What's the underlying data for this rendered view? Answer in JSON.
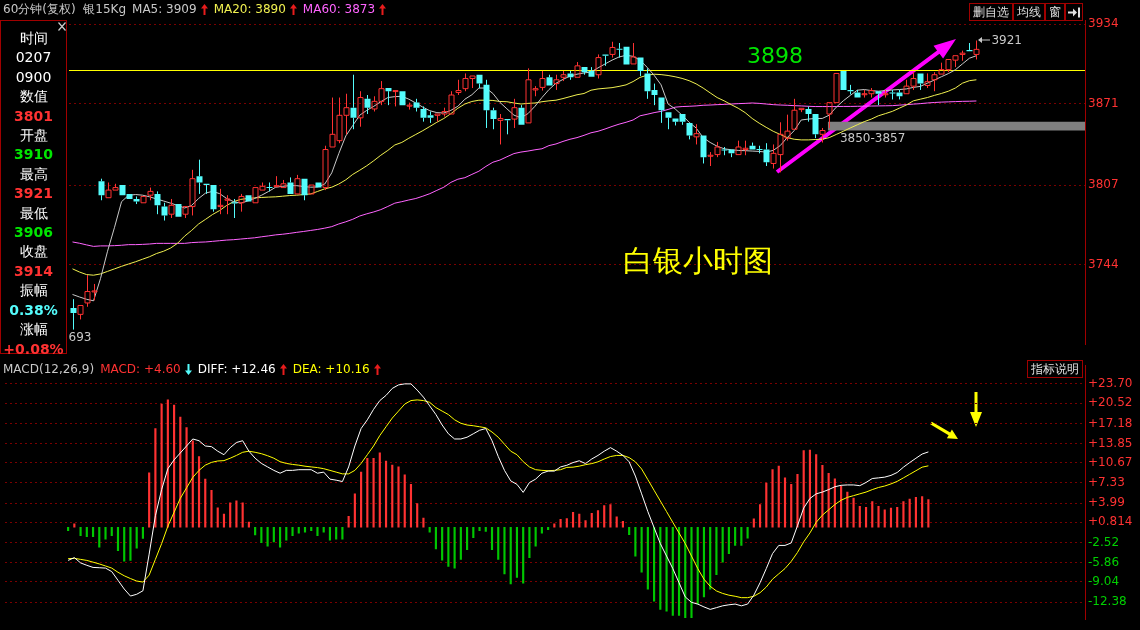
{
  "chart_data": [
    {
      "type": "other",
      "annotations": [
        "时间",
        "0207",
        "0900",
        "数值",
        "3801",
        "开盘",
        "3910",
        "最高",
        "3921",
        "最低",
        "3906",
        "收盘",
        "3914",
        "振幅",
        "0.38%",
        "涨幅",
        "+0.08%"
      ],
      "colors": [
        "#ffffff",
        "#ffffff",
        "#ffffff",
        "#ffffff",
        "#ff3232",
        "#ffffff",
        "#00e600",
        "#ffffff",
        "#ff3232",
        "#ffffff",
        "#00e600",
        "#ffffff",
        "#ff3232",
        "#ffffff",
        "#54fcfc",
        "#ffffff",
        "#ff3232"
      ]
    },
    {
      "type": "candlestick",
      "title": "白银小时图",
      "subtitle": "60分钟(复权)  银15Kg",
      "categories": [
        null,
        null,
        null,
        null,
        null,
        null,
        null,
        null,
        null,
        null,
        null,
        null,
        null,
        null,
        null,
        null,
        null,
        null,
        null,
        null,
        null,
        null,
        null,
        null,
        null,
        null,
        null,
        null,
        null,
        null,
        null,
        null,
        null,
        null,
        null,
        null,
        null,
        null,
        null,
        null,
        null,
        null,
        null,
        null,
        null,
        null,
        null,
        null,
        null,
        null,
        null,
        null,
        null,
        null,
        null,
        null,
        null,
        null,
        null,
        null,
        null,
        null,
        null,
        null,
        null,
        null,
        null,
        null,
        null,
        null,
        null,
        null,
        null,
        null,
        null,
        null,
        null,
        null,
        null,
        null,
        null,
        null,
        null,
        null,
        null,
        null,
        null,
        null,
        null,
        null,
        null,
        null,
        null,
        null,
        null,
        null,
        null,
        null,
        null,
        null,
        null,
        null,
        null,
        null,
        null,
        null,
        null,
        null,
        null,
        null,
        null,
        null,
        null,
        null,
        null,
        null,
        null,
        null,
        null,
        null,
        null,
        null,
        null,
        null,
        null,
        null,
        null,
        null,
        null,
        null
      ],
      "ohlc": [
        [
          3710,
          3717,
          3693,
          3706
        ],
        [
          3705,
          3712,
          3701,
          3712
        ],
        [
          3714,
          3736,
          3711,
          3723
        ],
        [
          3723,
          3729,
          3716,
          3723.5
        ],
        [
          3810,
          3812,
          3795,
          3799
        ],
        [
          3797,
          3809,
          3797,
          3803
        ],
        [
          3803,
          3808,
          3803,
          3805
        ],
        [
          3807,
          3807,
          3798,
          3799
        ],
        [
          3800,
          3801,
          3795,
          3796
        ],
        [
          3796,
          3798,
          3792,
          3794
        ],
        [
          3793,
          3799,
          3793,
          3798
        ],
        [
          3799,
          3805,
          3795,
          3802
        ],
        [
          3800,
          3802,
          3784,
          3791
        ],
        [
          3790,
          3793,
          3779,
          3783
        ],
        [
          3784,
          3796,
          3781,
          3791
        ],
        [
          3792,
          3793,
          3781,
          3782
        ],
        [
          3784,
          3791,
          3781,
          3790
        ],
        [
          3790,
          3819,
          3783,
          3812
        ],
        [
          3814,
          3827,
          3800,
          3809
        ],
        [
          3808,
          3808,
          3800,
          3807
        ],
        [
          3807,
          3808,
          3786,
          3788
        ],
        [
          3790,
          3804,
          3784,
          3791
        ],
        [
          3795,
          3799,
          3784,
          3796
        ],
        [
          3793.5,
          3796,
          3781,
          3792.5
        ],
        [
          3793,
          3800,
          3786,
          3798
        ],
        [
          3799,
          3799,
          3793,
          3794
        ],
        [
          3793,
          3805,
          3793,
          3805
        ],
        [
          3803,
          3809,
          3802,
          3806
        ],
        [
          3805.5,
          3809,
          3802,
          3805
        ],
        [
          3806,
          3814,
          3805,
          3806.5
        ],
        [
          3805,
          3811,
          3805,
          3808
        ],
        [
          3809,
          3813,
          3800,
          3800
        ],
        [
          3800,
          3815,
          3799,
          3812
        ],
        [
          3812,
          3813,
          3795,
          3799
        ],
        [
          3800,
          3808,
          3799,
          3807
        ],
        [
          3809,
          3809,
          3804,
          3805
        ],
        [
          3805,
          3838,
          3803,
          3835
        ],
        [
          3837,
          3876,
          3836,
          3847
        ],
        [
          3842,
          3876,
          3840,
          3862
        ],
        [
          3862,
          3879,
          3847,
          3868
        ],
        [
          3868,
          3894,
          3851,
          3860
        ],
        [
          3860,
          3881,
          3853,
          3876
        ],
        [
          3875,
          3878,
          3863,
          3868
        ],
        [
          3867,
          3877,
          3865,
          3873
        ],
        [
          3873,
          3889,
          3870,
          3883
        ],
        [
          3883.5,
          3883.5,
          3870,
          3881
        ],
        [
          3881,
          3882,
          3869,
          3881.5
        ],
        [
          3881,
          3882,
          3869,
          3870
        ],
        [
          3869.5,
          3872,
          3866.5,
          3870
        ],
        [
          3872,
          3875,
          3865,
          3868
        ],
        [
          3867,
          3869,
          3857,
          3860
        ],
        [
          3862,
          3865,
          3856,
          3860
        ],
        [
          3862,
          3863,
          3857,
          3863
        ],
        [
          3863,
          3868,
          3861,
          3865
        ],
        [
          3863,
          3881,
          3862,
          3878
        ],
        [
          3880,
          3890,
          3878,
          3881.5
        ],
        [
          3883,
          3895,
          3881,
          3891
        ],
        [
          3891,
          3894,
          3883.5,
          3893
        ],
        [
          3894,
          3895,
          3883.5,
          3887
        ],
        [
          3886,
          3890,
          3852,
          3866
        ],
        [
          3866,
          3868,
          3851,
          3859
        ],
        [
          3858,
          3863,
          3839,
          3859.5
        ],
        [
          3859,
          3860,
          3847,
          3858
        ],
        [
          3859,
          3875,
          3852,
          3868
        ],
        [
          3868,
          3870,
          3854,
          3854.5
        ],
        [
          3856,
          3899,
          3856,
          3890
        ],
        [
          3882,
          3885,
          3877,
          3883
        ],
        [
          3884,
          3897,
          3881.5,
          3891
        ],
        [
          3892,
          3894,
          3885,
          3885.5
        ],
        [
          3887,
          3894,
          3882,
          3890
        ],
        [
          3892,
          3897,
          3889,
          3894
        ],
        [
          3895,
          3897,
          3890,
          3892
        ],
        [
          3892,
          3904,
          3892,
          3901
        ],
        [
          3900,
          3901,
          3894,
          3896
        ],
        [
          3897,
          3900,
          3892,
          3892.5
        ],
        [
          3894,
          3910,
          3891,
          3907.5
        ],
        [
          3910,
          3910,
          3901,
          3909
        ],
        [
          3910,
          3920,
          3907.5,
          3915.5
        ],
        [
          3914.5,
          3919,
          3907.5,
          3914
        ],
        [
          3916,
          3917,
          3901,
          3902
        ],
        [
          3902.5,
          3919,
          3902,
          3908
        ],
        [
          3907.5,
          3908,
          3893,
          3897
        ],
        [
          3895,
          3899,
          3875,
          3881
        ],
        [
          3882,
          3887,
          3870,
          3878
        ],
        [
          3876,
          3877,
          3856,
          3866
        ],
        [
          3864.5,
          3865,
          3851,
          3860
        ],
        [
          3859.5,
          3859.5,
          3854,
          3857
        ],
        [
          3863,
          3863.5,
          3854.5,
          3857
        ],
        [
          3856,
          3856.5,
          3843,
          3846
        ],
        [
          3845,
          3855,
          3839,
          3847.5
        ],
        [
          3846,
          3846,
          3824,
          3829
        ],
        [
          3830,
          3833,
          3822,
          3830.5
        ],
        [
          3831,
          3841,
          3829,
          3837
        ],
        [
          3835,
          3837,
          3830.5,
          3834.5
        ],
        [
          3835,
          3836,
          3829,
          3832
        ],
        [
          3831,
          3842,
          3830,
          3837
        ],
        [
          3835,
          3842,
          3830.5,
          3836
        ],
        [
          3838,
          3840.5,
          3835,
          3835
        ],
        [
          3835.5,
          3838,
          3832,
          3835
        ],
        [
          3835,
          3840,
          3822,
          3825
        ],
        [
          3824,
          3839,
          3820,
          3832
        ],
        [
          3831,
          3856.5,
          3817,
          3847
        ],
        [
          3844,
          3862.5,
          3842,
          3849.5
        ],
        [
          3851,
          3875,
          3851,
          3866
        ],
        [
          3866.5,
          3867.5,
          3864.5,
          3867.5
        ],
        [
          3867,
          3869,
          3857,
          3863
        ],
        [
          3863,
          3864,
          3844,
          3847
        ],
        [
          3847,
          3852,
          3840.5,
          3850
        ],
        [
          3863,
          3872.5,
          3852,
          3872
        ],
        [
          3872,
          3895.5,
          3871,
          3895
        ],
        [
          3897,
          3898,
          3881,
          3882
        ],
        [
          3882,
          3886,
          3878.5,
          3881
        ],
        [
          3880,
          3882,
          3876,
          3876
        ],
        [
          3878.5,
          3882,
          3876,
          3879
        ],
        [
          3879,
          3883.5,
          3876,
          3881.5
        ],
        [
          3881,
          3882,
          3870,
          3879
        ],
        [
          3878.5,
          3882,
          3876,
          3879
        ],
        [
          3880,
          3882,
          3874.5,
          3879.5
        ],
        [
          3880,
          3882,
          3874.5,
          3877
        ],
        [
          3879,
          3890,
          3878.5,
          3885
        ],
        [
          3885,
          3896,
          3882,
          3891
        ],
        [
          3895,
          3896,
          3882,
          3887
        ],
        [
          3885.5,
          3895,
          3883.5,
          3888.5
        ],
        [
          3890,
          3896,
          3881,
          3894
        ],
        [
          3894.5,
          3903.5,
          3893.5,
          3898
        ],
        [
          3898,
          3906,
          3896,
          3906
        ],
        [
          3905.5,
          3910,
          3900,
          3909
        ],
        [
          3910,
          3913,
          3905,
          3911
        ],
        [
          3913.5,
          3919,
          3912.5,
          3912.5
        ],
        [
          3910,
          3921,
          3906,
          3914
        ]
      ],
      "series": [
        {
          "type": "line",
          "name": "MA5: 3909",
          "color": "#c8c8c8",
          "values": [
            3720.7,
            3718.7,
            3716.9,
            3715.7,
            3733.3,
            3754.8,
            3773.7,
            3793.9,
            3798.9,
            3799.5,
            3799,
            3797.7,
            3796,
            3794.4,
            3792.7,
            3790.9,
            3788.9,
            3790.9,
            3796.4,
            3800.7,
            3802,
            3800.2,
            3796.4,
            3793.9,
            3792.7,
            3794.4,
            3796.4,
            3799,
            3802,
            3805.3,
            3806,
            3806.5,
            3806.5,
            3805.8,
            3805.3,
            3805.5,
            3807.8,
            3816.6,
            3831.8,
            3845.7,
            3854,
            3862.1,
            3865.9,
            3869.1,
            3872.7,
            3876,
            3876.7,
            3877,
            3874.7,
            3871.7,
            3868.4,
            3865.6,
            3864.1,
            3863.8,
            3865.9,
            3869.1,
            3874.7,
            3878.2,
            3883.5,
            3883.5,
            3879.2,
            3872.2,
            3867.1,
            3862.1,
            3860,
            3863.3,
            3869.1,
            3876,
            3882.3,
            3887.3,
            3890.3,
            3892.9,
            3894.4,
            3895.4,
            3896.1,
            3899.4,
            3902.5,
            3905.5,
            3908,
            3909.3,
            3908.5,
            3905.5,
            3899.9,
            3893.6,
            3886,
            3870.9,
            3867.1,
            3862.1,
            3856.5,
            3852,
            3844.4,
            3840.6,
            3837.6,
            3835.6,
            3834.8,
            3834.3,
            3834.1,
            3833.8,
            3833.5,
            3833,
            3834.3,
            3838.1,
            3844.4,
            3849.9,
            3858.3,
            3859,
            3859.5,
            3859.5,
            3862.1,
            3868.4,
            3873.4,
            3877.7,
            3881.8,
            3882.3,
            3881.5,
            3881,
            3881.5,
            3882,
            3882.3,
            3882.8,
            3884,
            3884.8,
            3887.3,
            3889.8,
            3892.4,
            3894.9,
            3897.9,
            3902.5,
            3907,
            3909
          ]
        },
        {
          "type": "line",
          "name": "MA20: 3890",
          "color": "#f0f050",
          "values": [
            3740.9,
            3738.4,
            3736.4,
            3735.9,
            3736.9,
            3738.9,
            3740.9,
            3742.9,
            3744.7,
            3746.5,
            3748.5,
            3750.5,
            3753,
            3754.8,
            3757.3,
            3761.1,
            3766.7,
            3771.2,
            3776.3,
            3780,
            3783.8,
            3786.9,
            3790.9,
            3793.9,
            3795.7,
            3796.4,
            3796.9,
            3797.2,
            3797.5,
            3797.7,
            3798.2,
            3798.7,
            3799,
            3799.5,
            3800,
            3802,
            3804,
            3805.3,
            3807.8,
            3811.1,
            3815.4,
            3818.7,
            3822.2,
            3826.2,
            3830.5,
            3834.3,
            3838.6,
            3840.6,
            3843.9,
            3846.9,
            3849.9,
            3853.2,
            3856.5,
            3859.5,
            3863.3,
            3867.6,
            3870.9,
            3872.9,
            3873.9,
            3873.9,
            3873.7,
            3872.9,
            3872.7,
            3871.7,
            3870.9,
            3871.4,
            3871.7,
            3872.7,
            3873.4,
            3873.9,
            3875.2,
            3876.7,
            3878.2,
            3879.2,
            3881.8,
            3882.8,
            3883.3,
            3883.8,
            3884.8,
            3886,
            3888.6,
            3891.9,
            3893.6,
            3894.4,
            3894.1,
            3893.4,
            3892.4,
            3891.1,
            3889.3,
            3886.8,
            3883.5,
            3879.7,
            3876,
            3873.4,
            3870.4,
            3867.6,
            3864.1,
            3859.5,
            3855.8,
            3852.5,
            3849.4,
            3846.9,
            3844.4,
            3843.1,
            3842.6,
            3842.6,
            3842.9,
            3843.1,
            3844.4,
            3846.9,
            3849.4,
            3852,
            3854.5,
            3857,
            3859,
            3861.6,
            3863.3,
            3865.1,
            3867.6,
            3870.1,
            3873.4,
            3874.7,
            3876,
            3877.7,
            3879.2,
            3881,
            3883.5,
            3887.3,
            3889.3,
            3890
          ]
        },
        {
          "type": "line",
          "name": "MA60: 3873",
          "color": "#ff64ff",
          "values": [
            3762.1,
            3761.1,
            3759.8,
            3758.6,
            3759,
            3759,
            3759.2,
            3759.5,
            3760,
            3760,
            3760.2,
            3760.5,
            3761,
            3761,
            3761,
            3761,
            3761,
            3761.6,
            3761.9,
            3762.1,
            3762.6,
            3763.1,
            3763.6,
            3763.9,
            3764.4,
            3764.9,
            3765.4,
            3766.2,
            3766.9,
            3767.7,
            3768.2,
            3768.9,
            3769.7,
            3770.4,
            3771.2,
            3772,
            3773,
            3774.2,
            3776.3,
            3778,
            3780,
            3782.6,
            3784.3,
            3785.8,
            3787.6,
            3790.1,
            3792.7,
            3793.9,
            3795.2,
            3796.4,
            3798.2,
            3800.2,
            3802.8,
            3805.3,
            3809.1,
            3811.6,
            3812.8,
            3815.4,
            3817.9,
            3821.7,
            3825,
            3826.7,
            3829.3,
            3831.8,
            3833,
            3833.8,
            3834.8,
            3835.6,
            3838.1,
            3839.4,
            3841.4,
            3843.1,
            3844.4,
            3846.2,
            3848.2,
            3849.4,
            3851.2,
            3853.2,
            3855,
            3856.5,
            3858.3,
            3861.6,
            3862.8,
            3864.1,
            3865.1,
            3866.6,
            3868.4,
            3868.9,
            3869.1,
            3869.4,
            3869.9,
            3870.1,
            3870.4,
            3870.6,
            3870.9,
            3871.2,
            3871.4,
            3871.7,
            3871.4,
            3870.9,
            3870.4,
            3870.1,
            3869.9,
            3869.6,
            3869.4,
            3869.1,
            3868.9,
            3868.9,
            3868.9,
            3868.9,
            3869,
            3869,
            3869.1,
            3869.2,
            3869.3,
            3869.4,
            3869.5,
            3869.6,
            3870,
            3870.4,
            3870.8,
            3871.2,
            3871.7,
            3872.1,
            3872.4,
            3872.6,
            3872.8,
            3873,
            3873.1,
            3873.3
          ]
        }
      ],
      "ylim": [
        3681,
        3937
      ],
      "yticks": [
        3934,
        3871,
        3807,
        3744
      ],
      "grid": "y",
      "legend": "top left",
      "tick_labels": "y",
      "ref_lines": [
        {
          "axis": "y",
          "value": 3898,
          "label": "3898",
          "color": "#ffff00"
        }
      ],
      "bands": [
        {
          "axis": "y",
          "from": 3850,
          "to": 3857,
          "label": "3850-3857",
          "color": "#808080"
        }
      ],
      "annotations": [
        "3921",
        "693",
        "删自选",
        "均线",
        "窗"
      ]
    },
    {
      "type": "bar",
      "title": "MACD(12,26,9)",
      "categories": [
        null,
        null,
        null,
        null,
        null,
        null,
        null,
        null,
        null,
        null,
        null,
        null,
        null,
        null,
        null,
        null,
        null,
        null,
        null,
        null,
        null,
        null,
        null,
        null,
        null,
        null,
        null,
        null,
        null,
        null,
        null,
        null,
        null,
        null,
        null,
        null,
        null,
        null,
        null,
        null,
        null,
        null,
        null,
        null,
        null,
        null,
        null,
        null,
        null,
        null,
        null,
        null,
        null,
        null,
        null,
        null,
        null,
        null,
        null,
        null,
        null,
        null,
        null,
        null,
        null,
        null,
        null,
        null,
        null,
        null,
        null,
        null,
        null,
        null,
        null,
        null,
        null,
        null,
        null,
        null,
        null,
        null,
        null,
        null,
        null,
        null,
        null,
        null,
        null,
        null,
        null,
        null,
        null,
        null,
        null,
        null,
        null,
        null,
        null,
        null,
        null,
        null,
        null,
        null,
        null,
        null,
        null,
        null,
        null,
        null,
        null,
        null,
        null,
        null,
        null,
        null,
        null,
        null,
        null,
        null,
        null,
        null,
        null,
        null,
        null,
        null,
        null,
        null,
        null,
        null,
        null,
        null,
        null,
        null,
        null,
        null,
        null,
        null,
        null
      ],
      "series": [
        {
          "type": "bar",
          "name": "MACD: +4.60",
          "color": "#ff3232",
          "colors": [
            "#00c800",
            "#ff3232",
            "#00c800",
            "#00c800",
            "#00c800",
            "#00c800",
            "#00c800",
            "#00c800",
            "#00c800",
            "#00c800",
            "#00c800",
            "#00c800",
            "#00c800",
            "#ff3232",
            "#ff3232",
            "#ff3232",
            "#ff3232",
            "#ff3232",
            "#ff3232",
            "#ff3232",
            "#ff3232",
            "#ff3232",
            "#ff3232",
            "#ff3232",
            "#ff3232",
            "#ff3232",
            "#ff3232",
            "#ff3232",
            "#ff3232",
            "#ff3232",
            "#00c800",
            "#00c800",
            "#00c800",
            "#00c800",
            "#00c800",
            "#00c800",
            "#00c800",
            "#00c800",
            "#00c800",
            "#00c800",
            "#00c800",
            "#00c800",
            "#00c800",
            "#00c800",
            "#00c800",
            "#ff3232",
            "#ff3232",
            "#ff3232",
            "#ff3232",
            "#ff3232",
            "#ff3232",
            "#ff3232",
            "#ff3232",
            "#ff3232",
            "#ff3232",
            "#ff3232",
            "#ff3232",
            "#ff3232",
            "#00c800",
            "#00c800",
            "#00c800",
            "#00c800",
            "#00c800",
            "#00c800",
            "#00c800",
            "#00c800",
            "#00c800",
            "#00c800",
            "#00c800",
            "#00c800",
            "#00c800",
            "#00c800",
            "#00c800",
            "#00c800",
            "#00c800",
            "#00c800",
            "#00c800",
            "#00c800",
            "#ff3232",
            "#ff3232",
            "#ff3232",
            "#ff3232",
            "#ff3232",
            "#ff3232",
            "#ff3232",
            "#ff3232",
            "#ff3232",
            "#ff3232",
            "#ff3232",
            "#ff3232",
            "#00c800",
            "#00c800",
            "#00c800",
            "#00c800",
            "#00c800",
            "#00c800",
            "#00c800",
            "#00c800",
            "#00c800",
            "#00c800",
            "#00c800",
            "#00c800",
            "#00c800",
            "#00c800",
            "#00c800",
            "#00c800",
            "#00c800",
            "#00c800",
            "#00c800",
            "#00c800",
            "#ff3232",
            "#ff3232",
            "#ff3232",
            "#ff3232",
            "#ff3232",
            "#ff3232",
            "#ff3232",
            "#ff3232",
            "#ff3232",
            "#ff3232",
            "#ff3232",
            "#ff3232",
            "#ff3232",
            "#ff3232",
            "#ff3232",
            "#ff3232",
            "#ff3232",
            "#ff3232",
            "#ff3232",
            "#ff3232",
            "#ff3232",
            "#ff3232",
            "#ff3232",
            "#ff3232",
            "#ff3232",
            "#ff3232",
            "#ff3232",
            "#ff3232",
            "#ff3232"
          ],
          "values": [
            -0.58,
            0.58,
            -1.38,
            -1.56,
            -1.56,
            -3.29,
            -1.96,
            -1.38,
            -3.87,
            -5.6,
            -5.48,
            -3.46,
            -1.85,
            9,
            16.33,
            20.37,
            21.06,
            20.2,
            18.23,
            16.5,
            14.31,
            11.71,
            7.96,
            6.12,
            3.23,
            2.19,
            4.04,
            4.39,
            4.04,
            0.87,
            -1.27,
            -2.54,
            -3.12,
            -2.42,
            -3.29,
            -2.13,
            -1.38,
            -0.98,
            -0.81,
            -0.58,
            -1.38,
            -0.81,
            -2.13,
            -1.96,
            -1.96,
            1.79,
            5.54,
            9.12,
            11.42,
            11.42,
            12.29,
            10.96,
            10.27,
            9.98,
            8.66,
            7.1,
            3.92,
            1.5,
            -0.81,
            -3.58,
            -5.42,
            -6.46,
            -6.75,
            -5.31,
            -3.69,
            -1.73,
            -0.58,
            -0.69,
            -3.69,
            -5.31,
            -7.73,
            -9.35,
            -8.31,
            -9.23,
            -5.02,
            -3.12,
            -0.98,
            -0.4,
            0.58,
            1.33,
            1.42,
            2.47,
            2.18,
            1.12,
            2.29,
            2.76,
            3.59,
            3.76,
            1.71,
            1,
            -1.23,
            -4.76,
            -7.41,
            -10.23,
            -12.23,
            -13.58,
            -13.88,
            -14.58,
            -14.58,
            -14.94,
            -14.94,
            -12.7,
            -11.52,
            -10.23,
            -7.82,
            -5.76,
            -4.35,
            -3,
            -3,
            -1.82,
            1.41,
            3.76,
            7.29,
            9.53,
            10.11,
            8.17,
            7.11,
            8.76,
            12.7,
            12.76,
            12,
            10.23,
            8.94,
            8,
            6.82,
            5.82,
            4.82,
            3.47,
            3.29,
            4.23,
            3.47,
            2.88,
            3.18,
            3.29,
            4.23,
            4.65,
            4.94,
            5.06,
            4.6
          ]
        },
        {
          "type": "line",
          "name": "DIFF: +12.46",
          "color": "#ffffff",
          "values": [
            -5.48,
            -5.02,
            -5.89,
            -6.29,
            -6.64,
            -6.69,
            -6.75,
            -7.33,
            -8.77,
            -10.21,
            -11.37,
            -11.08,
            -10.5,
            -4.44,
            1.9,
            6.23,
            9.69,
            11.14,
            12.29,
            13.44,
            14.6,
            14.31,
            13.44,
            13.33,
            12.58,
            12,
            13.16,
            14.02,
            14.31,
            12.58,
            11.42,
            10.56,
            9.98,
            9.41,
            8.94,
            9.41,
            9.41,
            9.52,
            9.52,
            9.52,
            8.94,
            9.12,
            7.96,
            7.79,
            7.56,
            9.98,
            13.44,
            16.33,
            17.77,
            19.5,
            20.95,
            21.81,
            22.96,
            23.54,
            23.71,
            23.71,
            22.68,
            21.52,
            20.08,
            18.64,
            16.91,
            15.46,
            14.6,
            14.6,
            14.89,
            15.46,
            16.04,
            16.33,
            14.31,
            11.71,
            9.41,
            7.67,
            7.1,
            5.77,
            7.39,
            7.96,
            8.94,
            9.29,
            9.29,
            9.98,
            10.25,
            10.7,
            11,
            10.53,
            11.29,
            11.88,
            12.58,
            13.17,
            12.58,
            11.88,
            10.82,
            8.47,
            5.53,
            2.59,
            -0.06,
            -2.7,
            -4.76,
            -6.82,
            -9.17,
            -11.52,
            -12.41,
            -12.7,
            -13.17,
            -13.58,
            -13.29,
            -12.99,
            -12.82,
            -12.7,
            -12.99,
            -12.7,
            -11.23,
            -9.17,
            -6.82,
            -4.35,
            -3,
            -3,
            -2.59,
            0.24,
            3.18,
            4.76,
            5.53,
            5.82,
            6.23,
            6.7,
            6.94,
            7,
            7,
            6.88,
            7.41,
            8.06,
            8.17,
            8.29,
            8.58,
            9.06,
            9.94,
            10.7,
            11.41,
            12.11,
            12.46
          ]
        },
        {
          "type": "line",
          "name": "DEA: +10.16",
          "color": "#ffff00",
          "values": [
            -5.19,
            -5.14,
            -5.31,
            -5.48,
            -5.77,
            -6.06,
            -6.4,
            -6.75,
            -7.44,
            -8.02,
            -8.48,
            -8.89,
            -9.06,
            -7.91,
            -5.31,
            -2.71,
            0.17,
            2.48,
            4.79,
            6.52,
            8.25,
            9.41,
            10.27,
            10.73,
            10.96,
            11.02,
            11.42,
            11.88,
            12.4,
            12.58,
            12.4,
            12.17,
            11.83,
            11.42,
            10.85,
            10.56,
            10.39,
            10.27,
            10.1,
            9.98,
            9.87,
            9.69,
            9.41,
            9.12,
            8.83,
            8.83,
            9.41,
            10.56,
            12,
            13.44,
            15.17,
            16.62,
            18.06,
            19.21,
            20.37,
            20.95,
            21.06,
            20.95,
            20.66,
            19.79,
            19.21,
            18.64,
            17.77,
            17.2,
            16.91,
            16.79,
            16.62,
            16.45,
            15.75,
            14.89,
            13.73,
            12.58,
            12,
            10.85,
            9.98,
            9.52,
            9.41,
            9.35,
            9.41,
            9.52,
            9.9,
            9.94,
            10.11,
            10.35,
            10.53,
            10.82,
            11.29,
            11.7,
            11.88,
            11.88,
            11.52,
            10.82,
            9.64,
            7.88,
            6.11,
            4.35,
            2.59,
            0.82,
            -0.94,
            -2.7,
            -4.76,
            -6.82,
            -8.58,
            -9.76,
            -10.53,
            -10.94,
            -11.23,
            -11.41,
            -11.64,
            -11.64,
            -11.41,
            -10.82,
            -9.88,
            -8.58,
            -7.7,
            -6.82,
            -5.64,
            -4.17,
            -2.41,
            -0.94,
            0.82,
            2,
            2.88,
            3.76,
            4.47,
            4.94,
            5.23,
            5.53,
            5.82,
            6.23,
            6.58,
            6.82,
            7.17,
            7.59,
            8.17,
            8.76,
            9.35,
            9.94,
            10.16
          ]
        }
      ],
      "ylim": [
        -15.3,
        26.8
      ],
      "yticks": [
        {
          "value": 23.7,
          "label": "+23.70"
        },
        {
          "value": 20.52,
          "label": "+20.52"
        },
        {
          "value": 17.18,
          "label": "+17.18"
        },
        {
          "value": 13.85,
          "label": "+13.85"
        },
        {
          "value": 10.67,
          "label": "+10.67"
        },
        {
          "value": 7.33,
          "label": "+7.33"
        },
        {
          "value": 3.99,
          "label": "+3.99"
        },
        {
          "value": 0.814,
          "label": "+0.814"
        },
        {
          "value": -2.52,
          "label": "-2.52"
        },
        {
          "value": -5.86,
          "label": "-5.86"
        },
        {
          "value": -9.04,
          "label": "-9.04"
        },
        {
          "value": -12.38,
          "label": "-12.38"
        }
      ],
      "grid": "y",
      "legend": "top left",
      "tick_labels": "y",
      "annotations": [
        "指标说明"
      ]
    }
  ]
}
